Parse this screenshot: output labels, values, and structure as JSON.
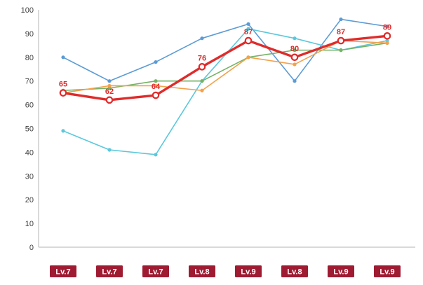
{
  "chart_data": {
    "type": "line",
    "title": "",
    "xlabel": "",
    "ylabel": "",
    "ylim": [
      0,
      100
    ],
    "ytick_step": 10,
    "grid": false,
    "legend_position": "none",
    "categories": [
      "Lv.7",
      "Lv.7",
      "Lv.7",
      "Lv.8",
      "Lv.9",
      "Lv.8",
      "Lv.9",
      "Lv.9"
    ],
    "series": [
      {
        "name": "blue",
        "color": "#5b9bd5",
        "width": 1.6,
        "marker": "dot",
        "label_values": false,
        "values": [
          80,
          70,
          78,
          88,
          94,
          70,
          96,
          93
        ]
      },
      {
        "name": "cyan",
        "color": "#5bc8dc",
        "width": 1.6,
        "marker": "dot",
        "label_values": false,
        "values": [
          49,
          41,
          39,
          70,
          92,
          88,
          83,
          87
        ]
      },
      {
        "name": "green",
        "color": "#74b266",
        "width": 1.6,
        "marker": "dot",
        "label_values": false,
        "values": [
          66,
          67,
          70,
          70,
          80,
          83,
          83,
          86
        ]
      },
      {
        "name": "orange",
        "color": "#f2a24c",
        "width": 1.6,
        "marker": "dot",
        "label_values": false,
        "values": [
          65,
          68,
          68,
          66,
          80,
          77,
          87,
          86
        ]
      },
      {
        "name": "red",
        "color": "#e02b2b",
        "width": 3.4,
        "marker": "circle-open",
        "label_values": true,
        "values": [
          65,
          62,
          64,
          76,
          87,
          80,
          87,
          89
        ]
      }
    ],
    "value_label_color": "#e02b2b",
    "axis_color": "#b3b3b3",
    "tick_label_color": "#404040",
    "badge_color": "#9e1b32",
    "badge_text_color": "#ffffff"
  }
}
